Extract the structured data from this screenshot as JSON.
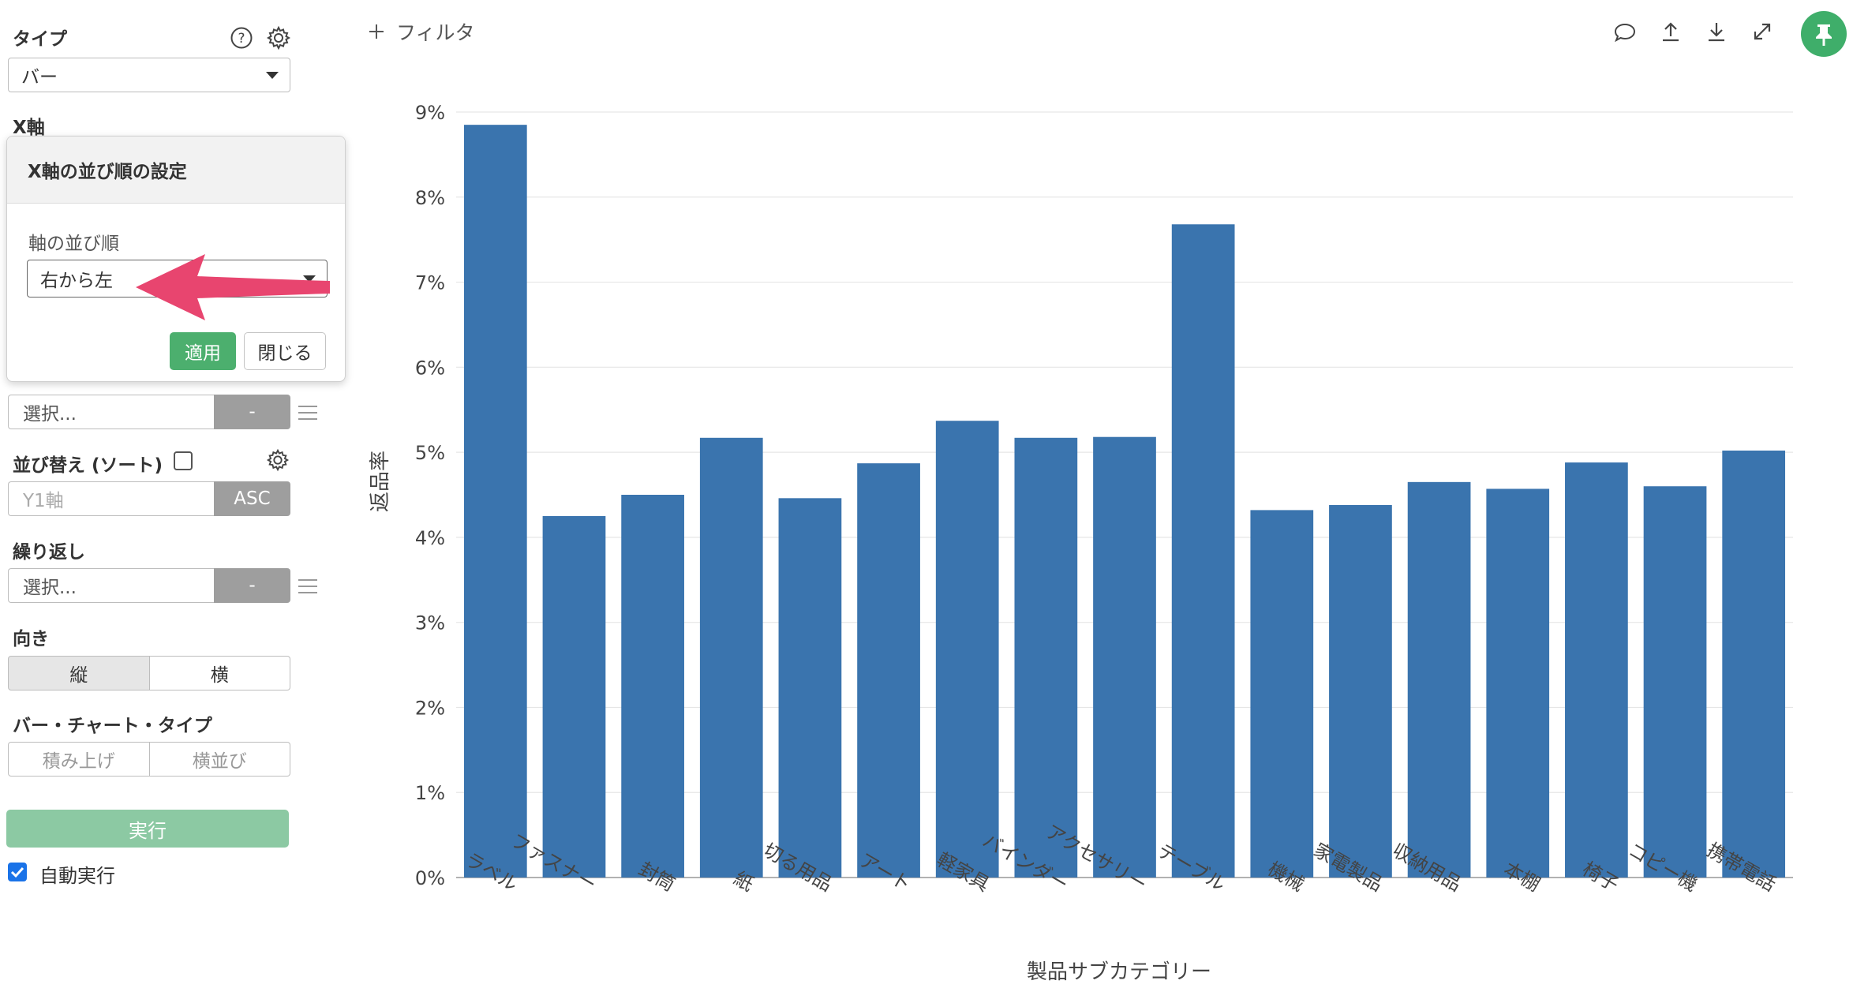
{
  "sidebar": {
    "type_label": "タイプ",
    "type_value": "バー",
    "x_axis_label": "X軸",
    "color_select_placeholder": "選択...",
    "color_button": "-",
    "sort_label": "並び替え (ソート)",
    "sort_input_placeholder": "Y1軸",
    "sort_button": "ASC",
    "repeat_label": "繰り返し",
    "repeat_select_placeholder": "選択...",
    "repeat_button": "-",
    "orientation_label": "向き",
    "orientation_options": [
      "縦",
      "横"
    ],
    "orientation_selected": "縦",
    "bar_chart_type_label": "バー・チャート・タイプ",
    "bar_chart_type_options": [
      "積み上げ",
      "横並び"
    ],
    "run_button": "実行",
    "auto_run_label": "自動実行",
    "auto_run_checked": true
  },
  "popover": {
    "title": "X軸の並び順の設定",
    "field_label": "軸の並び順",
    "field_value": "右から左",
    "apply_button": "適用",
    "close_button": "閉じる",
    "arrow_color": "#e8456f"
  },
  "toolbar": {
    "filter_label": "フィルタ",
    "icons": [
      "comment-icon",
      "upload-icon",
      "download-icon",
      "expand-icon",
      "pin-icon"
    ]
  },
  "colors": {
    "bar": "#3a74ae",
    "accent_green": "#3fae6a",
    "run_button": "#8cc9a3"
  },
  "chart_data": {
    "type": "bar",
    "categories": [
      "ラベル",
      "ファスナー",
      "封筒",
      "紙",
      "切る用品",
      "アート",
      "軽家具",
      "バインダー",
      "アクセサリー",
      "テーブル",
      "機械",
      "家電製品",
      "収納用品",
      "本棚",
      "椅子",
      "コピー機",
      "携帯電話"
    ],
    "values": [
      8.85,
      4.25,
      4.5,
      5.17,
      4.46,
      4.87,
      5.37,
      5.17,
      5.18,
      7.68,
      4.32,
      4.38,
      4.65,
      4.57,
      4.88,
      4.6,
      5.02
    ],
    "xlabel": "製品サブカテゴリー",
    "ylabel": "返品率",
    "ylim": [
      0,
      9
    ],
    "yticks": [
      "0%",
      "1%",
      "2%",
      "3%",
      "4%",
      "5%",
      "6%",
      "7%",
      "8%",
      "9%"
    ],
    "grid": true
  }
}
